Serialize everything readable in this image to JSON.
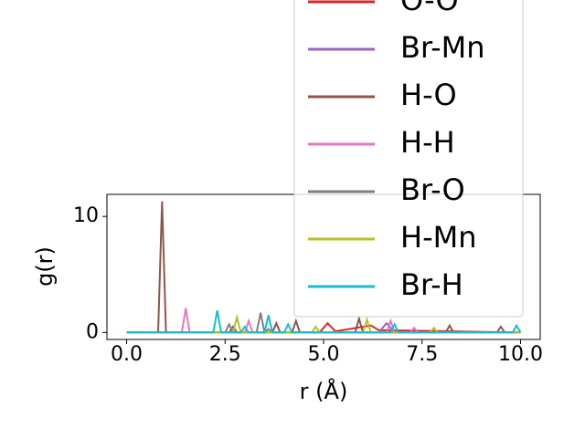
{
  "chart_data": {
    "type": "line",
    "x_label": "r (Å)",
    "y_label": "g(r)",
    "xlim": [
      -0.5,
      10.5
    ],
    "ylim": [
      -0.6,
      11.9
    ],
    "xticks": [
      {
        "value": 0,
        "label": "0.0"
      },
      {
        "value": 2.5,
        "label": "2.5"
      },
      {
        "value": 5,
        "label": "5.0"
      },
      {
        "value": 7.5,
        "label": "7.5"
      },
      {
        "value": 10,
        "label": "10.0"
      }
    ],
    "yticks": [
      0,
      10
    ],
    "legend": "upper right",
    "series": [
      {
        "name": "O-O",
        "color": "#d62728",
        "x": [
          0,
          4.9,
          5.1,
          5.3,
          6.2,
          6.4,
          10
        ],
        "values": [
          0,
          0,
          0.8,
          0.1,
          0.6,
          0.2,
          0
        ]
      },
      {
        "name": "Br-Mn",
        "color": "#9467bd",
        "x": [
          0,
          6.4,
          6.6,
          6.8,
          10
        ],
        "values": [
          0,
          0,
          0.8,
          0,
          0
        ]
      },
      {
        "name": "H-O",
        "color": "#8c564b",
        "x": [
          0,
          0.8,
          0.9,
          1.0,
          2.6,
          2.7,
          2.8,
          3.7,
          3.8,
          3.9,
          4.2,
          4.3,
          4.4,
          5.8,
          5.9,
          6.0,
          8.1,
          8.2,
          8.3,
          9.4,
          9.5,
          9.6,
          10
        ],
        "values": [
          0,
          0,
          11.3,
          0,
          0,
          0.5,
          0,
          0,
          0.8,
          0,
          0,
          1.0,
          0,
          0,
          1.2,
          0,
          0,
          0.6,
          0,
          0,
          0.5,
          0,
          0
        ]
      },
      {
        "name": "H-H",
        "color": "#e377c2",
        "x": [
          0,
          1.4,
          1.5,
          1.6,
          3.0,
          3.1,
          3.2,
          6.6,
          6.7,
          6.8,
          7.2,
          7.3,
          7.4,
          10
        ],
        "values": [
          0,
          0,
          2.1,
          0,
          0,
          1.0,
          0,
          0,
          1.0,
          0,
          0,
          0.4,
          0,
          0
        ]
      },
      {
        "name": "Br-O",
        "color": "#7f7f7f",
        "x": [
          0,
          2.5,
          2.6,
          2.7,
          3.3,
          3.4,
          3.5,
          3.6,
          3.7,
          10
        ],
        "values": [
          0,
          0,
          0.7,
          0,
          0,
          1.7,
          0,
          0.3,
          0,
          0
        ]
      },
      {
        "name": "H-Mn",
        "color": "#bcbd22",
        "x": [
          0,
          2.7,
          2.8,
          2.9,
          4.7,
          4.8,
          4.9,
          6.0,
          6.1,
          6.2,
          7.7,
          7.8,
          7.9,
          10
        ],
        "values": [
          0,
          0,
          1.3,
          0,
          0,
          0.5,
          0,
          0,
          1.1,
          0,
          0,
          0.4,
          0,
          0
        ]
      },
      {
        "name": "Br-H",
        "color": "#17becf",
        "x": [
          0,
          2.2,
          2.3,
          2.4,
          2.9,
          3.0,
          3.1,
          3.5,
          3.6,
          3.7,
          4.0,
          4.1,
          4.2,
          6.7,
          6.8,
          6.9,
          9.8,
          9.9,
          10
        ],
        "values": [
          0,
          0,
          1.9,
          0,
          0,
          0.5,
          0,
          0,
          1.5,
          0,
          0,
          0.7,
          0,
          0,
          0.7,
          0,
          0,
          0.6,
          0
        ]
      }
    ]
  }
}
